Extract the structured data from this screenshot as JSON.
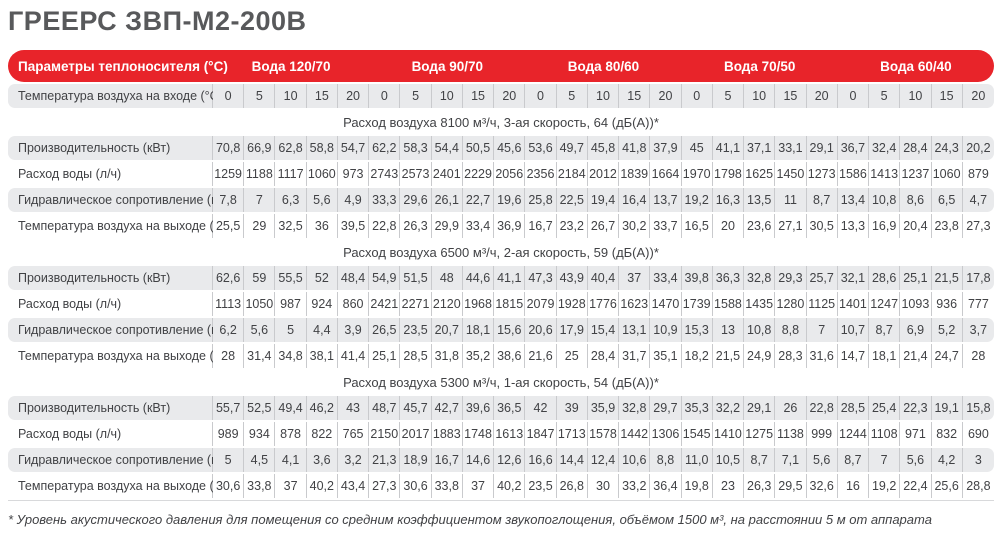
{
  "page_title": "ГРЕЕРС ЗВП-М2-200В",
  "colors": {
    "accent_red": "#e8242a",
    "title_gray": "#58595b",
    "row_gray": "#e9eaec",
    "text": "#414245"
  },
  "table": {
    "header": {
      "params_label": "Параметры теплоносителя (°C)",
      "groups": [
        "Вода 120/70",
        "Вода 90/70",
        "Вода 80/60",
        "Вода 70/50",
        "Вода 60/40"
      ],
      "inlet_label": "Температура воздуха на входе (°C)",
      "inlet_temps": [
        "0",
        "5",
        "10",
        "15",
        "20"
      ]
    },
    "row_labels": [
      "Производительность (кВт)",
      "Расход воды (л/ч)",
      "Гидравлическое сопротивление (кПа)",
      "Температура воздуха на выходе (°C)"
    ],
    "sections": [
      {
        "title": "Расход воздуха 8100 м³/ч, 3-ая скорость, 64 (дБ(А))*",
        "rows": [
          [
            "70,8",
            "66,9",
            "62,8",
            "58,8",
            "54,7",
            "62,2",
            "58,3",
            "54,4",
            "50,5",
            "45,6",
            "53,6",
            "49,7",
            "45,8",
            "41,8",
            "37,9",
            "45",
            "41,1",
            "37,1",
            "33,1",
            "29,1",
            "36,7",
            "32,4",
            "28,4",
            "24,3",
            "20,2"
          ],
          [
            "1259",
            "1188",
            "1117",
            "1060",
            "973",
            "2743",
            "2573",
            "2401",
            "2229",
            "2056",
            "2356",
            "2184",
            "2012",
            "1839",
            "1664",
            "1970",
            "1798",
            "1625",
            "1450",
            "1273",
            "1586",
            "1413",
            "1237",
            "1060",
            "879"
          ],
          [
            "7,8",
            "7",
            "6,3",
            "5,6",
            "4,9",
            "33,3",
            "29,6",
            "26,1",
            "22,7",
            "19,6",
            "25,8",
            "22,5",
            "19,4",
            "16,4",
            "13,7",
            "19,2",
            "16,3",
            "13,5",
            "11",
            "8,7",
            "13,4",
            "10,8",
            "8,6",
            "6,5",
            "4,7"
          ],
          [
            "25,5",
            "29",
            "32,5",
            "36",
            "39,5",
            "22,8",
            "26,3",
            "29,9",
            "33,4",
            "36,9",
            "16,7",
            "23,2",
            "26,7",
            "30,2",
            "33,7",
            "16,5",
            "20",
            "23,6",
            "27,1",
            "30,5",
            "13,3",
            "16,9",
            "20,4",
            "23,8",
            "27,3"
          ]
        ]
      },
      {
        "title": "Расход воздуха 6500 м³/ч, 2-ая скорость, 59 (дБ(А))*",
        "rows": [
          [
            "62,6",
            "59",
            "55,5",
            "52",
            "48,4",
            "54,9",
            "51,5",
            "48",
            "44,6",
            "41,1",
            "47,3",
            "43,9",
            "40,4",
            "37",
            "33,4",
            "39,8",
            "36,3",
            "32,8",
            "29,3",
            "25,7",
            "32,1",
            "28,6",
            "25,1",
            "21,5",
            "17,8"
          ],
          [
            "1113",
            "1050",
            "987",
            "924",
            "860",
            "2421",
            "2271",
            "2120",
            "1968",
            "1815",
            "2079",
            "1928",
            "1776",
            "1623",
            "1470",
            "1739",
            "1588",
            "1435",
            "1280",
            "1125",
            "1401",
            "1247",
            "1093",
            "936",
            "777"
          ],
          [
            "6,2",
            "5,6",
            "5",
            "4,4",
            "3,9",
            "26,5",
            "23,5",
            "20,7",
            "18,1",
            "15,6",
            "20,6",
            "17,9",
            "15,4",
            "13,1",
            "10,9",
            "15,3",
            "13",
            "10,8",
            "8,8",
            "7",
            "10,7",
            "8,7",
            "6,9",
            "5,2",
            "3,7"
          ],
          [
            "28",
            "31,4",
            "34,8",
            "38,1",
            "41,4",
            "25,1",
            "28,5",
            "31,8",
            "35,2",
            "38,6",
            "21,6",
            "25",
            "28,4",
            "31,7",
            "35,1",
            "18,2",
            "21,5",
            "24,9",
            "28,3",
            "31,6",
            "14,7",
            "18,1",
            "21,4",
            "24,7",
            "28"
          ]
        ]
      },
      {
        "title": "Расход воздуха 5300 м³/ч, 1-ая скорость, 54 (дБ(А))*",
        "rows": [
          [
            "55,7",
            "52,5",
            "49,4",
            "46,2",
            "43",
            "48,7",
            "45,7",
            "42,7",
            "39,6",
            "36,5",
            "42",
            "39",
            "35,9",
            "32,8",
            "29,7",
            "35,3",
            "32,2",
            "29,1",
            "26",
            "22,8",
            "28,5",
            "25,4",
            "22,3",
            "19,1",
            "15,8"
          ],
          [
            "989",
            "934",
            "878",
            "822",
            "765",
            "2150",
            "2017",
            "1883",
            "1748",
            "1613",
            "1847",
            "1713",
            "1578",
            "1442",
            "1306",
            "1545",
            "1410",
            "1275",
            "1138",
            "999",
            "1244",
            "1108",
            "971",
            "832",
            "690"
          ],
          [
            "5",
            "4,5",
            "4,1",
            "3,6",
            "3,2",
            "21,3",
            "18,9",
            "16,7",
            "14,6",
            "12,6",
            "16,6",
            "14,4",
            "12,4",
            "10,6",
            "8,8",
            "11,0",
            "10,5",
            "8,7",
            "7,1",
            "5,6",
            "8,7",
            "7",
            "5,6",
            "4,2",
            "3"
          ],
          [
            "30,6",
            "33,8",
            "37",
            "40,2",
            "43,4",
            "27,3",
            "30,6",
            "33,8",
            "37",
            "40,2",
            "23,5",
            "26,8",
            "30",
            "33,2",
            "36,4",
            "19,8",
            "23",
            "26,3",
            "29,5",
            "32,6",
            "16",
            "19,2",
            "22,4",
            "25,6",
            "28,8"
          ]
        ]
      }
    ],
    "footnote": "* Уровень акустического давления для помещения со средним коэффициентом звукопоглощения, объёмом 1500 м³, на расстоянии 5 м от аппарата"
  }
}
